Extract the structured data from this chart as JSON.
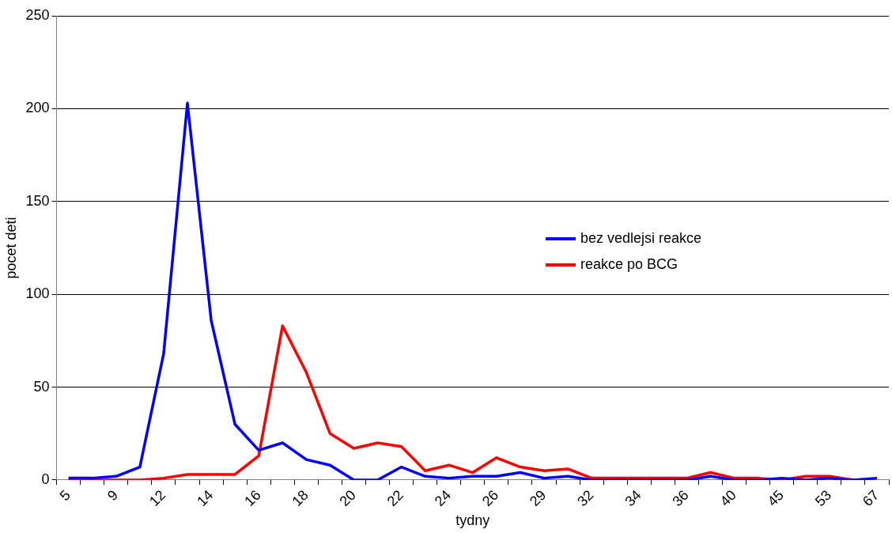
{
  "chart_data": {
    "type": "line",
    "xlabel": "tydny",
    "ylabel": "pocet deti",
    "categories": [
      "5",
      null,
      "9",
      null,
      "12",
      null,
      "14",
      null,
      "16",
      null,
      "18",
      null,
      "20",
      null,
      "22",
      null,
      "24",
      null,
      "26",
      null,
      "29",
      null,
      "32",
      null,
      "34",
      null,
      "36",
      null,
      "40",
      null,
      "45",
      null,
      "53",
      null,
      "67"
    ],
    "series": [
      {
        "name": "bez vedlejsi reakce",
        "color": "#0000ff",
        "values": [
          1,
          1,
          2,
          7,
          68,
          203,
          86,
          30,
          16,
          20,
          11,
          8,
          0,
          0,
          7,
          2,
          1,
          2,
          2,
          4,
          1,
          2,
          0,
          0,
          0,
          0,
          0,
          2,
          0,
          0,
          1,
          0,
          1,
          0,
          1
        ]
      },
      {
        "name": "reakce po BCG",
        "color": "#ff0000",
        "values": [
          0,
          0,
          0,
          0,
          1,
          3,
          3,
          3,
          13,
          83,
          58,
          25,
          17,
          20,
          18,
          5,
          8,
          4,
          12,
          7,
          5,
          6,
          1,
          1,
          1,
          1,
          1,
          4,
          1,
          1,
          0,
          2,
          2,
          0,
          null
        ]
      }
    ],
    "ylim": [
      0,
      250
    ],
    "yticks": [
      0,
      50,
      100,
      150,
      200,
      250
    ],
    "grid": "y",
    "legend": "right",
    "marker": "none",
    "line_style": "solid"
  }
}
